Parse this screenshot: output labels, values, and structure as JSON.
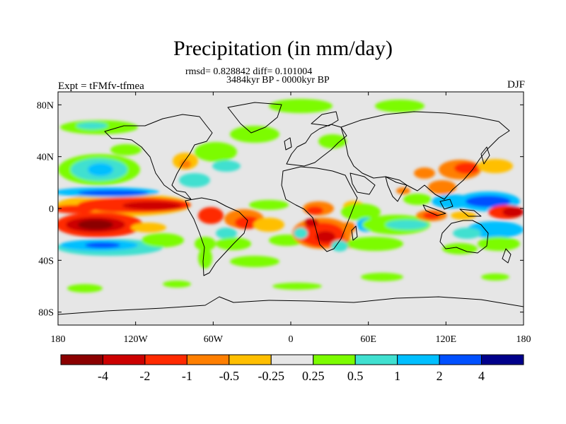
{
  "title": "Precipitation (in mm/day)",
  "stats_line": "rmsd= 0.828842 diff= 0.101004",
  "period_line": "3484kyr BP - 0000kyr BP",
  "experiment_label": "Expt = tFMfv-tfmea",
  "season_label": "DJF",
  "map": {
    "projection": "cylindrical equidistant",
    "lon_range": [
      -180,
      180
    ],
    "lat_range": [
      -90,
      90
    ],
    "background_color": "#e6e6e6",
    "coastline_color": "#000000",
    "lat_ticks": [
      {
        "value": 80,
        "label": "80N"
      },
      {
        "value": 40,
        "label": "40N"
      },
      {
        "value": 0,
        "label": "0"
      },
      {
        "value": -40,
        "label": "40S"
      },
      {
        "value": -80,
        "label": "80S"
      }
    ],
    "lon_ticks": [
      {
        "value": -180,
        "label": "180"
      },
      {
        "value": -120,
        "label": "120W"
      },
      {
        "value": -60,
        "label": "60W"
      },
      {
        "value": 0,
        "label": "0"
      },
      {
        "value": 60,
        "label": "60E"
      },
      {
        "value": 120,
        "label": "120E"
      },
      {
        "value": 180,
        "label": "180"
      }
    ]
  },
  "colorbar": {
    "colors": [
      "#8b0000",
      "#cc0000",
      "#ff2a00",
      "#ff7f00",
      "#ffbf00",
      "#e6e6e6",
      "#7cfc00",
      "#40e0d0",
      "#00bfff",
      "#0050ff",
      "#00008b"
    ],
    "labels": [
      {
        "boundary": 1,
        "text": "-4"
      },
      {
        "boundary": 2,
        "text": "-2"
      },
      {
        "boundary": 3,
        "text": "-1"
      },
      {
        "boundary": 4,
        "text": "-0.5"
      },
      {
        "boundary": 5,
        "text": "-0.25"
      },
      {
        "boundary": 6,
        "text": "0.25"
      },
      {
        "boundary": 7,
        "text": "0.5"
      },
      {
        "boundary": 8,
        "text": "1"
      },
      {
        "boundary": 9,
        "text": "2"
      },
      {
        "boundary": 10,
        "text": "4"
      }
    ]
  }
}
